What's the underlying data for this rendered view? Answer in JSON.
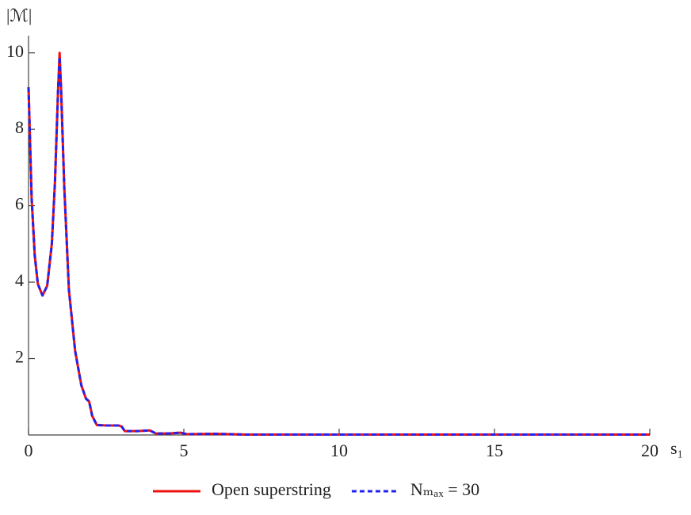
{
  "chart_data": {
    "type": "line",
    "ylabel": "|ℳ|",
    "xlabel": "s₁",
    "x": [
      0,
      0.1,
      0.2,
      0.3,
      0.45,
      0.6,
      0.75,
      0.85,
      0.95,
      1.0,
      1.05,
      1.15,
      1.3,
      1.5,
      1.7,
      1.85,
      1.95,
      2.05,
      2.2,
      2.5,
      2.9,
      3.0,
      3.1,
      3.5,
      3.9,
      4.0,
      4.1,
      4.5,
      4.9,
      5.0,
      5.1,
      6,
      7,
      8,
      10,
      12,
      15,
      20
    ],
    "series": [
      {
        "name": "Open superstring",
        "color": "#ee1111",
        "linestyle": "solid",
        "values": [
          9.1,
          6.2,
          4.7,
          3.95,
          3.65,
          3.9,
          5.0,
          6.6,
          9.0,
          10.0,
          9.0,
          6.5,
          3.8,
          2.2,
          1.3,
          0.95,
          0.88,
          0.5,
          0.26,
          0.25,
          0.25,
          0.22,
          0.1,
          0.1,
          0.12,
          0.08,
          0.04,
          0.04,
          0.06,
          0.04,
          0.02,
          0.03,
          0.01,
          0.01,
          0.01,
          0.01,
          0.01,
          0.01
        ]
      },
      {
        "name": "Nₘₐₓ = 30",
        "color": "#2222ee",
        "linestyle": "dashed",
        "values": [
          9.1,
          6.2,
          4.7,
          3.95,
          3.65,
          3.9,
          5.0,
          6.6,
          9.0,
          9.9,
          9.0,
          6.5,
          3.8,
          2.2,
          1.3,
          0.95,
          0.88,
          0.5,
          0.26,
          0.25,
          0.25,
          0.22,
          0.1,
          0.1,
          0.12,
          0.08,
          0.04,
          0.04,
          0.06,
          0.04,
          0.02,
          0.03,
          0.01,
          0.01,
          0.01,
          0.01,
          0.01,
          0.01
        ]
      }
    ],
    "xlim": [
      0,
      20
    ],
    "xticks": [
      0,
      5,
      10,
      15,
      20
    ],
    "ylim": [
      0,
      10.45
    ],
    "yticks": [
      2,
      4,
      6,
      8,
      10
    ],
    "legend": "bottom"
  }
}
